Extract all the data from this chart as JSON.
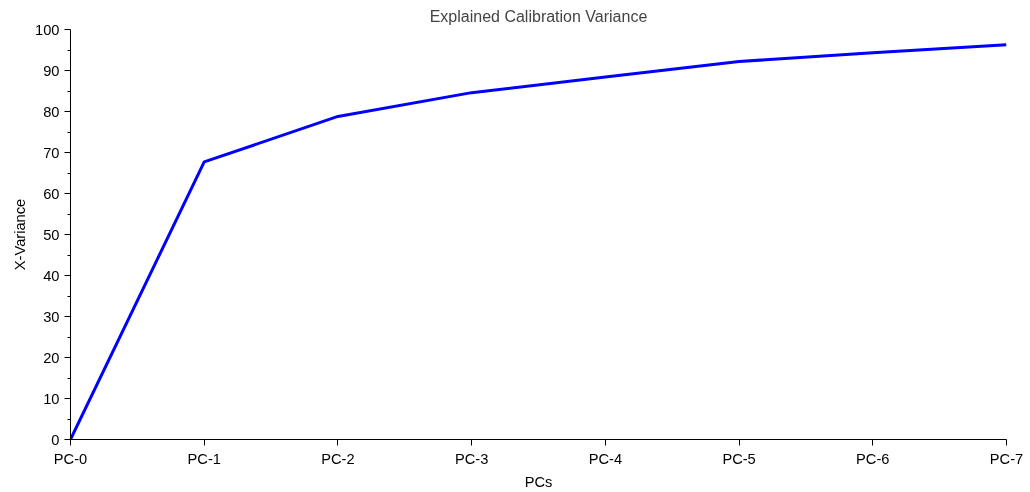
{
  "chart_data": {
    "type": "line",
    "title": "Explained Calibration Variance",
    "xlabel": "PCs",
    "ylabel": "X-Variance",
    "categories": [
      "PC-0",
      "PC-1",
      "PC-2",
      "PC-3",
      "PC-4",
      "PC-5",
      "PC-6",
      "PC-7"
    ],
    "series": [
      {
        "color": "#0000ff",
        "values": [
          0,
          67.7,
          78.8,
          84.6,
          88.4,
          92.2,
          94.3,
          96.3
        ]
      }
    ],
    "ylim": [
      0,
      100
    ],
    "yticks": [
      0,
      10,
      20,
      30,
      40,
      50,
      60,
      70,
      80,
      90,
      100
    ],
    "grid": false,
    "marker": "none",
    "line_style": "solid"
  }
}
